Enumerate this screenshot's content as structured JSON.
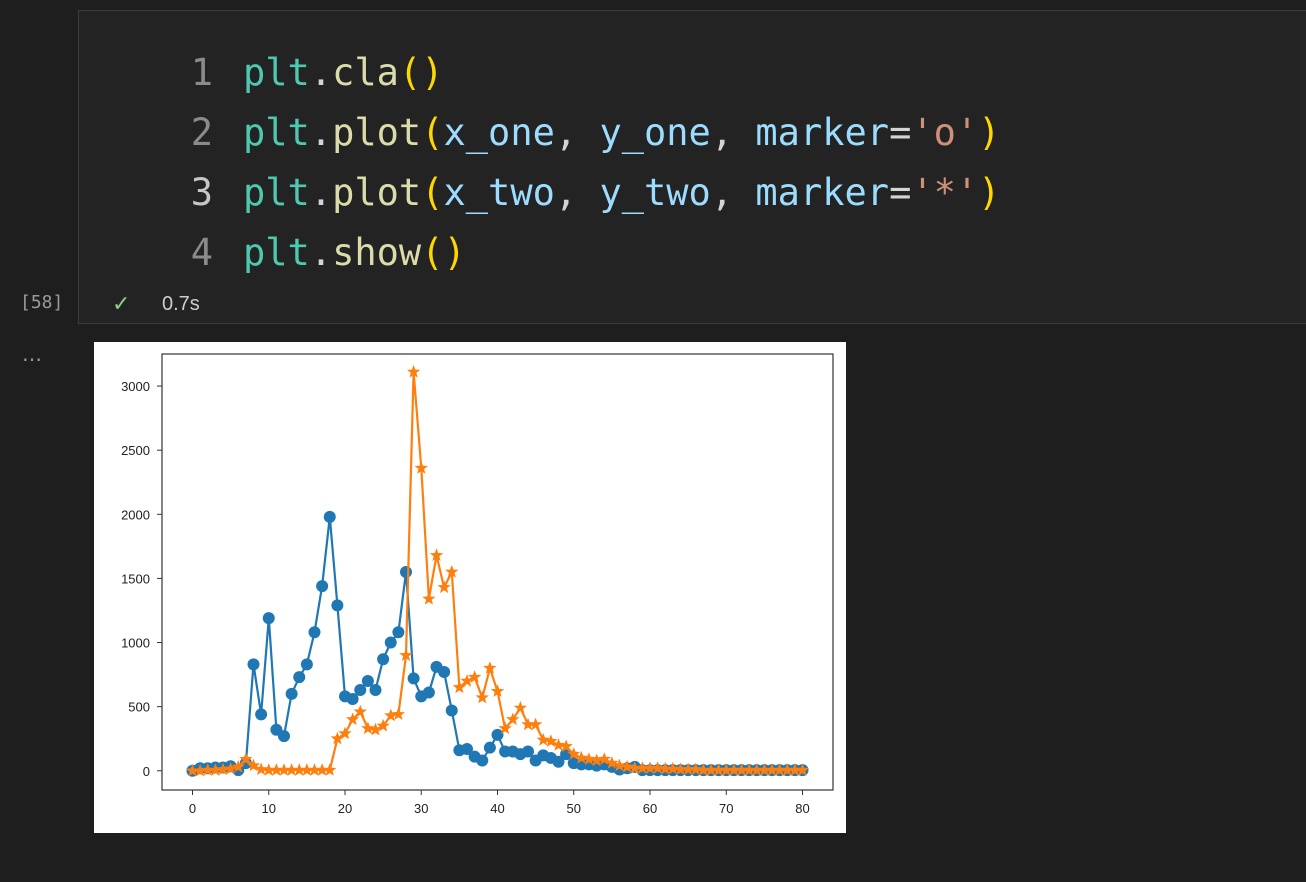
{
  "cell": {
    "lines": [
      {
        "number": "1",
        "tokens": [
          [
            "plt",
            "plt"
          ],
          [
            ".",
            "dot"
          ],
          [
            "cla",
            "fn"
          ],
          [
            "()",
            "par"
          ]
        ]
      },
      {
        "number": "2",
        "tokens": [
          [
            "plt",
            "plt"
          ],
          [
            ".",
            "dot"
          ],
          [
            "plot",
            "fn"
          ],
          [
            "(",
            "par"
          ],
          [
            "x_one",
            "var"
          ],
          [
            ", ",
            "op"
          ],
          [
            "y_one",
            "var"
          ],
          [
            ", ",
            "op"
          ],
          [
            "marker",
            "var"
          ],
          [
            "=",
            "op"
          ],
          [
            "'o'",
            "str"
          ],
          [
            ")",
            "par"
          ]
        ]
      },
      {
        "number": "3",
        "tokens": [
          [
            "plt",
            "plt"
          ],
          [
            ".",
            "dot"
          ],
          [
            "plot",
            "fn"
          ],
          [
            "(",
            "par"
          ],
          [
            "x_two",
            "var"
          ],
          [
            ", ",
            "op"
          ],
          [
            "y_two",
            "var"
          ],
          [
            ", ",
            "op"
          ],
          [
            "marker",
            "var"
          ],
          [
            "=",
            "op"
          ],
          [
            "'*'",
            "str"
          ],
          [
            ")",
            "par"
          ]
        ]
      },
      {
        "number": "4",
        "tokens": [
          [
            "plt",
            "plt"
          ],
          [
            ".",
            "dot"
          ],
          [
            "show",
            "fn"
          ],
          [
            "()",
            "par"
          ]
        ]
      }
    ],
    "active_line": "3",
    "exec_count": "[58]",
    "status_icon": "check-icon",
    "exec_time": "0.7s"
  },
  "output": {
    "ellipsis": "…"
  },
  "chart_data": {
    "type": "line",
    "xlim": [
      -4,
      84
    ],
    "ylim": [
      -150,
      3250
    ],
    "xticks": [
      0,
      10,
      20,
      30,
      40,
      50,
      60,
      70,
      80
    ],
    "yticks": [
      0,
      500,
      1000,
      1500,
      2000,
      2500,
      3000
    ],
    "grid": false,
    "series": [
      {
        "color": "#1f77b4",
        "marker": "o",
        "x": [
          0,
          1,
          2,
          3,
          4,
          5,
          6,
          7,
          8,
          9,
          10,
          11,
          12,
          13,
          14,
          15,
          16,
          17,
          18,
          19,
          20,
          21,
          22,
          23,
          24,
          25,
          26,
          27,
          28,
          29,
          30,
          31,
          32,
          33,
          34,
          35,
          36,
          37,
          38,
          39,
          40,
          41,
          42,
          43,
          44,
          45,
          46,
          47,
          48,
          49,
          50,
          51,
          52,
          53,
          54,
          55,
          56,
          57,
          58,
          59,
          60,
          61,
          62,
          63,
          64,
          65,
          66,
          67,
          68,
          69,
          70,
          71,
          72,
          73,
          74,
          75,
          76,
          77,
          78,
          79,
          80
        ],
        "y": [
          0,
          20,
          20,
          25,
          25,
          35,
          5,
          60,
          830,
          440,
          1190,
          320,
          270,
          600,
          730,
          830,
          1080,
          1440,
          1980,
          1290,
          580,
          560,
          630,
          700,
          630,
          870,
          1000,
          1080,
          1550,
          720,
          580,
          610,
          810,
          770,
          470,
          160,
          170,
          110,
          80,
          180,
          280,
          150,
          150,
          130,
          150,
          80,
          120,
          100,
          70,
          130,
          60,
          50,
          50,
          40,
          50,
          30,
          10,
          20,
          30,
          5,
          5,
          5,
          5,
          5,
          5,
          5,
          5,
          5,
          5,
          5,
          5,
          5,
          5,
          5,
          5,
          5,
          5,
          5,
          5,
          5,
          5
        ]
      },
      {
        "color": "#ff7f0e",
        "marker": "*",
        "x": [
          0,
          1,
          2,
          3,
          4,
          5,
          6,
          7,
          8,
          9,
          10,
          11,
          12,
          13,
          14,
          15,
          16,
          17,
          18,
          19,
          20,
          21,
          22,
          23,
          24,
          25,
          26,
          27,
          28,
          29,
          30,
          31,
          32,
          33,
          34,
          35,
          36,
          37,
          38,
          39,
          40,
          41,
          42,
          43,
          44,
          45,
          46,
          47,
          48,
          49,
          50,
          51,
          52,
          53,
          54,
          55,
          56,
          57,
          58,
          59,
          60,
          61,
          62,
          63,
          64,
          65,
          66,
          67,
          68,
          69,
          70,
          71,
          72,
          73,
          74,
          75,
          76,
          77,
          78,
          79,
          80
        ],
        "y": [
          0,
          0,
          5,
          5,
          10,
          15,
          30,
          90,
          40,
          10,
          5,
          5,
          5,
          5,
          5,
          5,
          5,
          5,
          5,
          250,
          290,
          400,
          460,
          330,
          320,
          350,
          430,
          440,
          900,
          3110,
          2360,
          1340,
          1680,
          1430,
          1550,
          650,
          700,
          730,
          570,
          800,
          620,
          330,
          400,
          490,
          360,
          360,
          240,
          230,
          200,
          190,
          130,
          100,
          90,
          80,
          90,
          60,
          40,
          30,
          20,
          20,
          20,
          20,
          15,
          15,
          10,
          10,
          10,
          5,
          5,
          5,
          5,
          5,
          5,
          5,
          5,
          5,
          5,
          5,
          5,
          5,
          5
        ]
      }
    ]
  }
}
